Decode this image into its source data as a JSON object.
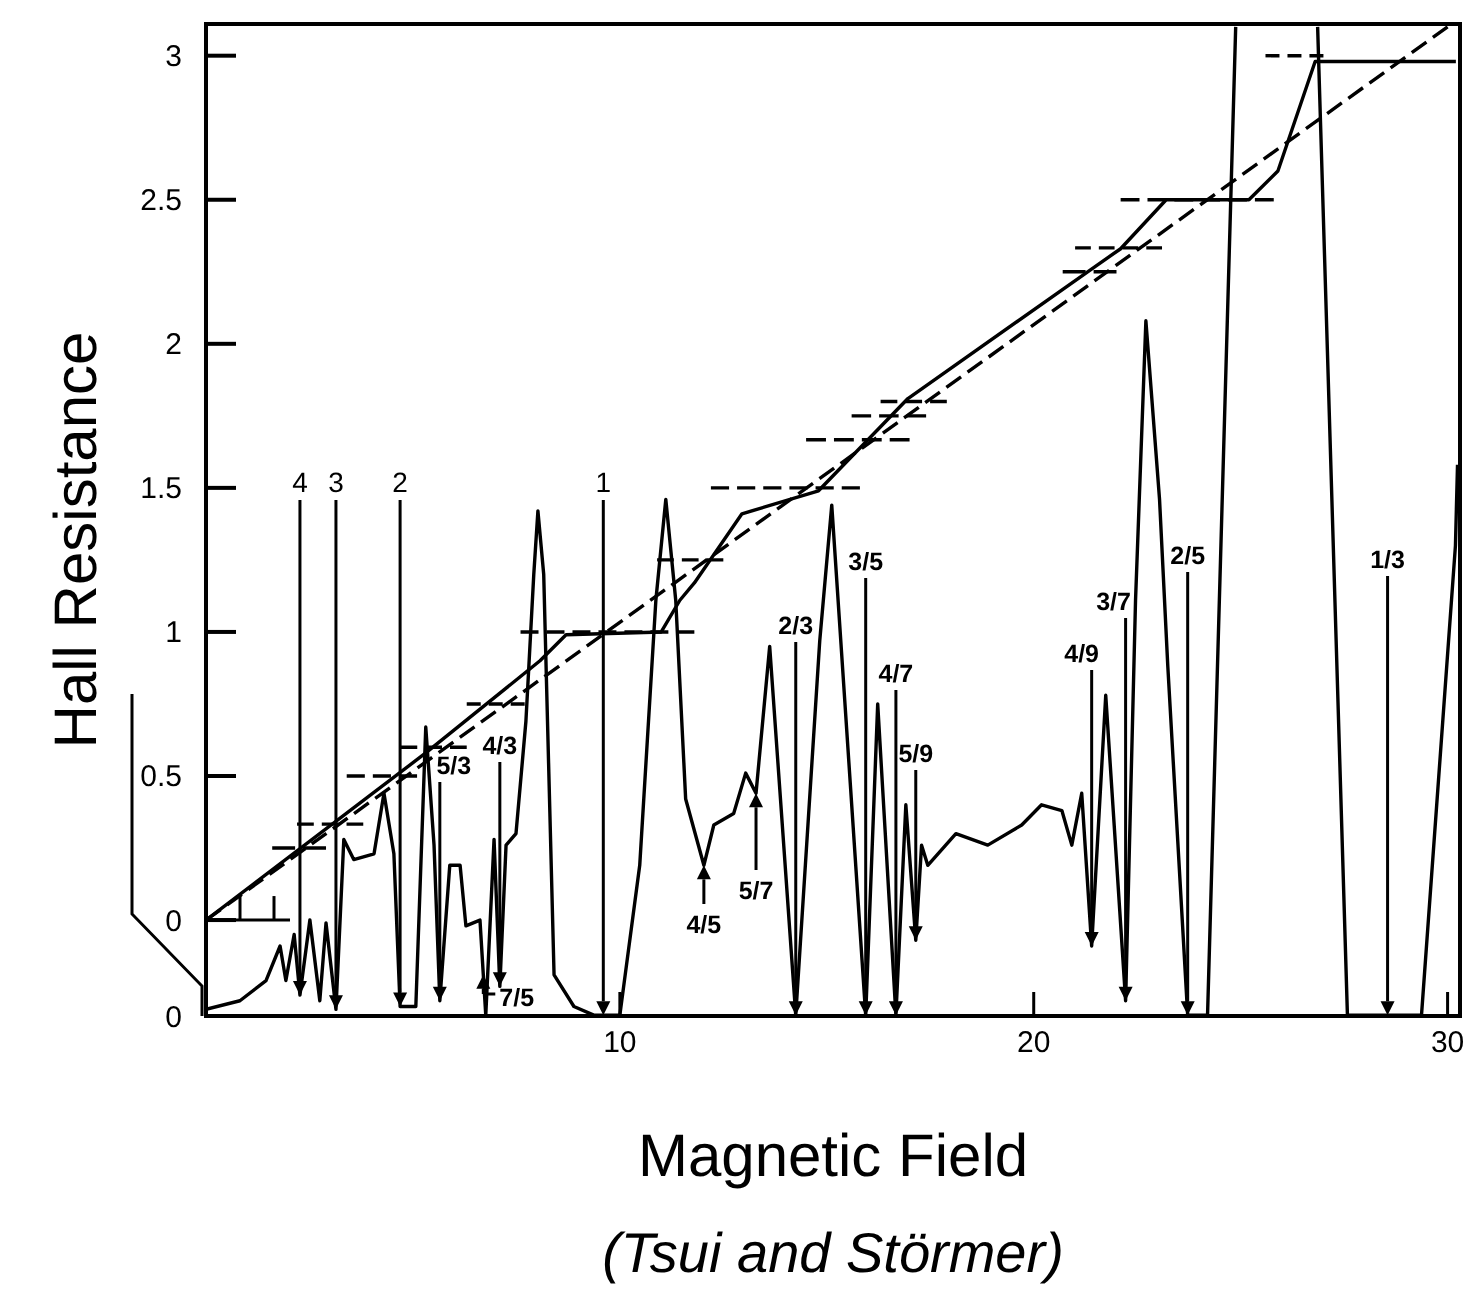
{
  "chart_data": {
    "type": "line",
    "xlabel": "Magnetic Field",
    "ylabel": "Hall Resistance",
    "xlim": [
      0,
      30.3
    ],
    "xticks": [
      10,
      20,
      30
    ],
    "ylim": [
      -0.333,
      3.11
    ],
    "yticks": [
      {
        "value": -0.333,
        "label": "0"
      },
      0,
      0.5,
      1,
      1.5,
      2,
      2.5,
      3
    ],
    "grid": false,
    "line_style": "solid",
    "series": [
      {
        "color": "#000000",
        "x": [
          0,
          5.31,
          8.07,
          8.7,
          11.0,
          11.45,
          11.8,
          12.95,
          14.8,
          16.96,
          21.5,
          22.1,
          23.2,
          25.2,
          25.9,
          26.8,
          30.2
        ],
        "values": [
          0,
          0.58,
          0.9,
          0.99,
          1.0,
          1.11,
          1.17,
          1.41,
          1.49,
          1.81,
          2.27,
          2.33,
          2.5,
          2.5,
          2.6,
          2.98,
          2.98
        ]
      },
      {
        "color": "#000000",
        "line_style": "dashed",
        "x": [
          0,
          30
        ],
        "values": [
          0,
          3.1
        ]
      },
      {
        "color": "#000000",
        "x": [
          0,
          0.82,
          1.45,
          1.79,
          1.93,
          2.13,
          2.27,
          2.51,
          2.75,
          2.9,
          3.14,
          3.33,
          3.57,
          4.06,
          4.3,
          4.54,
          4.69,
          5.07,
          5.31,
          5.51,
          5.65,
          5.89,
          6.14,
          6.28,
          6.62,
          6.76,
          6.96,
          7.1,
          7.25,
          7.49,
          7.73,
          7.92,
          8.02,
          8.16,
          8.41,
          8.89,
          9.37,
          9.6,
          10.0,
          10.48,
          10.87,
          11.11,
          11.35,
          11.59,
          12.03,
          12.27,
          12.75,
          13.04,
          13.29,
          13.62,
          14.25,
          14.83,
          15.12,
          15.94,
          16.23,
          16.67,
          16.91,
          17.15,
          17.29,
          17.44,
          18.12,
          18.89,
          19.71,
          20.19,
          20.68,
          20.92,
          21.16,
          21.4,
          21.74,
          22.22,
          22.46,
          22.71,
          23.04,
          23.24,
          23.72,
          24.2,
          24.88,
          25.9,
          26.86,
          27.58,
          28.55,
          29.37,
          30.19,
          30.24
        ],
        "values": [
          -0.31,
          -0.28,
          -0.21,
          -0.09,
          -0.21,
          -0.05,
          -0.26,
          0,
          -0.28,
          -0.01,
          -0.31,
          0.28,
          0.21,
          0.23,
          0.44,
          0.23,
          -0.3,
          -0.3,
          0.67,
          0.26,
          -0.28,
          0.19,
          0.19,
          -0.02,
          0,
          -0.33,
          0.28,
          -0.23,
          0.26,
          0.3,
          0.69,
          1.2,
          1.42,
          1.2,
          -0.19,
          -0.3,
          -0.33,
          -0.33,
          -0.33,
          0.19,
          1.11,
          1.46,
          1.11,
          0.42,
          0.19,
          0.33,
          0.37,
          0.51,
          0.44,
          0.95,
          -0.33,
          0.97,
          1.44,
          -0.33,
          0.75,
          -0.33,
          0.4,
          -0.07,
          0.26,
          0.19,
          0.3,
          0.26,
          0.33,
          0.4,
          0.38,
          0.26,
          0.44,
          -0.09,
          0.78,
          -0.28,
          1.11,
          2.08,
          1.46,
          0.88,
          -0.33,
          -0.33,
          3.1,
          null,
          3.1,
          -0.33,
          -0.33,
          -0.33,
          1.3,
          1.58
        ]
      },
      {
        "color": "#000000",
        "line_style": "dashed",
        "x": [
          1.6,
          2.9
        ],
        "values": [
          0.25,
          0.25
        ]
      },
      {
        "color": "#000000",
        "line_style": "dashed",
        "x": [
          2.2,
          3.8
        ],
        "values": [
          0.333,
          0.333
        ]
      },
      {
        "color": "#000000",
        "line_style": "dashed",
        "x": [
          3.4,
          5.1
        ],
        "values": [
          0.5,
          0.5
        ]
      },
      {
        "color": "#000000",
        "line_style": "dashed",
        "x": [
          4.7,
          6.3
        ],
        "values": [
          0.6,
          0.6
        ]
      },
      {
        "color": "#000000",
        "line_style": "dashed",
        "x": [
          6.3,
          7.7
        ],
        "values": [
          0.75,
          0.75
        ]
      },
      {
        "color": "#000000",
        "line_style": "dashed",
        "x": [
          7.6,
          11.8
        ],
        "values": [
          1,
          1
        ]
      },
      {
        "color": "#000000",
        "line_style": "dashed",
        "x": [
          10.9,
          12.5
        ],
        "values": [
          1.25,
          1.25
        ]
      },
      {
        "color": "#000000",
        "line_style": "dashed",
        "x": [
          12.2,
          15.8
        ],
        "values": [
          1.5,
          1.5
        ]
      },
      {
        "color": "#000000",
        "line_style": "dashed",
        "x": [
          14.5,
          17.0
        ],
        "values": [
          1.667,
          1.667
        ]
      },
      {
        "color": "#000000",
        "line_style": "dashed",
        "x": [
          15.6,
          17.4
        ],
        "values": [
          1.75,
          1.75
        ]
      },
      {
        "color": "#000000",
        "line_style": "dashed",
        "x": [
          16.3,
          17.9
        ],
        "values": [
          1.8,
          1.8
        ]
      },
      {
        "color": "#000000",
        "line_style": "dashed",
        "x": [
          20.7,
          22.0
        ],
        "values": [
          2.25,
          2.25
        ]
      },
      {
        "color": "#000000",
        "line_style": "dashed",
        "x": [
          21.0,
          23.1
        ],
        "values": [
          2.333,
          2.333
        ]
      },
      {
        "color": "#000000",
        "line_style": "dashed",
        "x": [
          22.1,
          25.8
        ],
        "values": [
          2.5,
          2.5
        ]
      },
      {
        "color": "#000000",
        "line_style": "dashed",
        "x": [
          25.6,
          27.0
        ],
        "values": [
          3,
          3
        ]
      }
    ],
    "annotations": [
      {
        "text": "4",
        "x": 2.27,
        "y": -0.26
      },
      {
        "text": "3",
        "x": 3.14,
        "y": -0.31
      },
      {
        "text": "2",
        "x": 4.69,
        "y": -0.3
      },
      {
        "text": "1",
        "x": 9.6,
        "y": -0.33
      },
      {
        "text": "5/3",
        "x": 5.65,
        "y": -0.28
      },
      {
        "text": "4/3",
        "x": 7.1,
        "y": -0.23
      },
      {
        "text": "7/5",
        "x": 6.7,
        "y": -0.19
      },
      {
        "text": "4/5",
        "x": 12.03,
        "y": 0.19
      },
      {
        "text": "5/7",
        "x": 13.29,
        "y": 0.44
      },
      {
        "text": "2/3",
        "x": 14.25,
        "y": -0.33
      },
      {
        "text": "3/5",
        "x": 15.94,
        "y": -0.33
      },
      {
        "text": "4/7",
        "x": 16.67,
        "y": -0.33
      },
      {
        "text": "5/9",
        "x": 17.15,
        "y": -0.07
      },
      {
        "text": "4/9",
        "x": 21.4,
        "y": -0.09
      },
      {
        "text": "3/7",
        "x": 22.22,
        "y": -0.28
      },
      {
        "text": "2/5",
        "x": 23.72,
        "y": -0.33
      },
      {
        "text": "1/3",
        "x": 28.55,
        "y": -0.33
      },
      "(Tsui and Störmer)"
    ]
  }
}
